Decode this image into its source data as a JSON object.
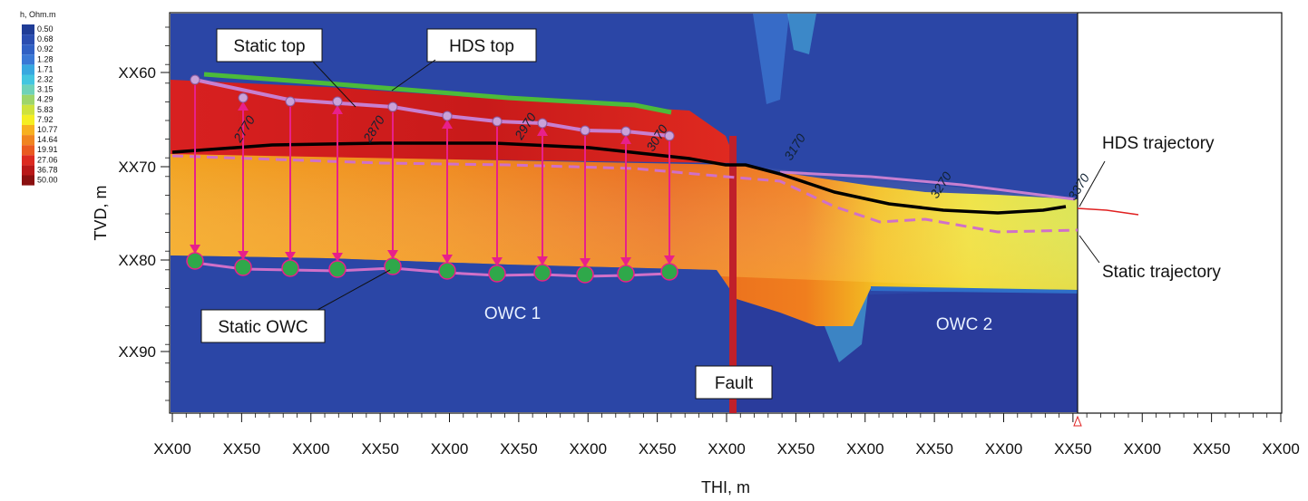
{
  "chart_data": {
    "type": "heatmap",
    "xlabel": "THI, m",
    "ylabel": "TVD, m",
    "x_ticks": [
      "XX00",
      "XX50",
      "XX00",
      "XX50",
      "XX00",
      "XX50",
      "XX00",
      "XX50",
      "XX00",
      "XX50",
      "XX00",
      "XX50",
      "XX00",
      "XX50",
      "XX00",
      "XX50",
      "XX00"
    ],
    "y_ticks": [
      "XX60",
      "XX70",
      "XX80",
      "XX90"
    ],
    "colorbar": {
      "title": "h, Ohm.m",
      "values": [
        "0.50",
        "0.68",
        "0.92",
        "1.28",
        "1.71",
        "2.32",
        "3.15",
        "4.29",
        "5.83",
        "7.92",
        "10.77",
        "14.64",
        "19.91",
        "27.06",
        "36.78",
        "50.00"
      ],
      "colors": [
        "#1f3c96",
        "#2a4db0",
        "#3060c4",
        "#3a78d6",
        "#38a8e0",
        "#43c6e0",
        "#6fd2b8",
        "#9ed56a",
        "#cfe23c",
        "#f5ee22",
        "#f7b020",
        "#f08420",
        "#ea5a20",
        "#dc2a20",
        "#b81818",
        "#8a1010"
      ]
    },
    "annotations": {
      "static_top": "Static top",
      "hds_top": "HDS top",
      "static_owc": "Static OWC",
      "owc1": "OWC 1",
      "owc2": "OWC 2",
      "fault": "Fault",
      "hds_trajectory": "HDS trajectory",
      "static_trajectory": "Static trajectory"
    },
    "md_labels": [
      "2770",
      "2870",
      "2970",
      "3070",
      "3170",
      "3270",
      "3370"
    ],
    "colors": {
      "hds_top_line": "#4cbb3a",
      "static_top_line": "#c77fd0",
      "hds_trajectory": "#000000",
      "static_trajectory": "#d070c8",
      "arrows": "#e8208a",
      "fault": "#c0202a",
      "owc_markers": "#2fa84a"
    }
  }
}
